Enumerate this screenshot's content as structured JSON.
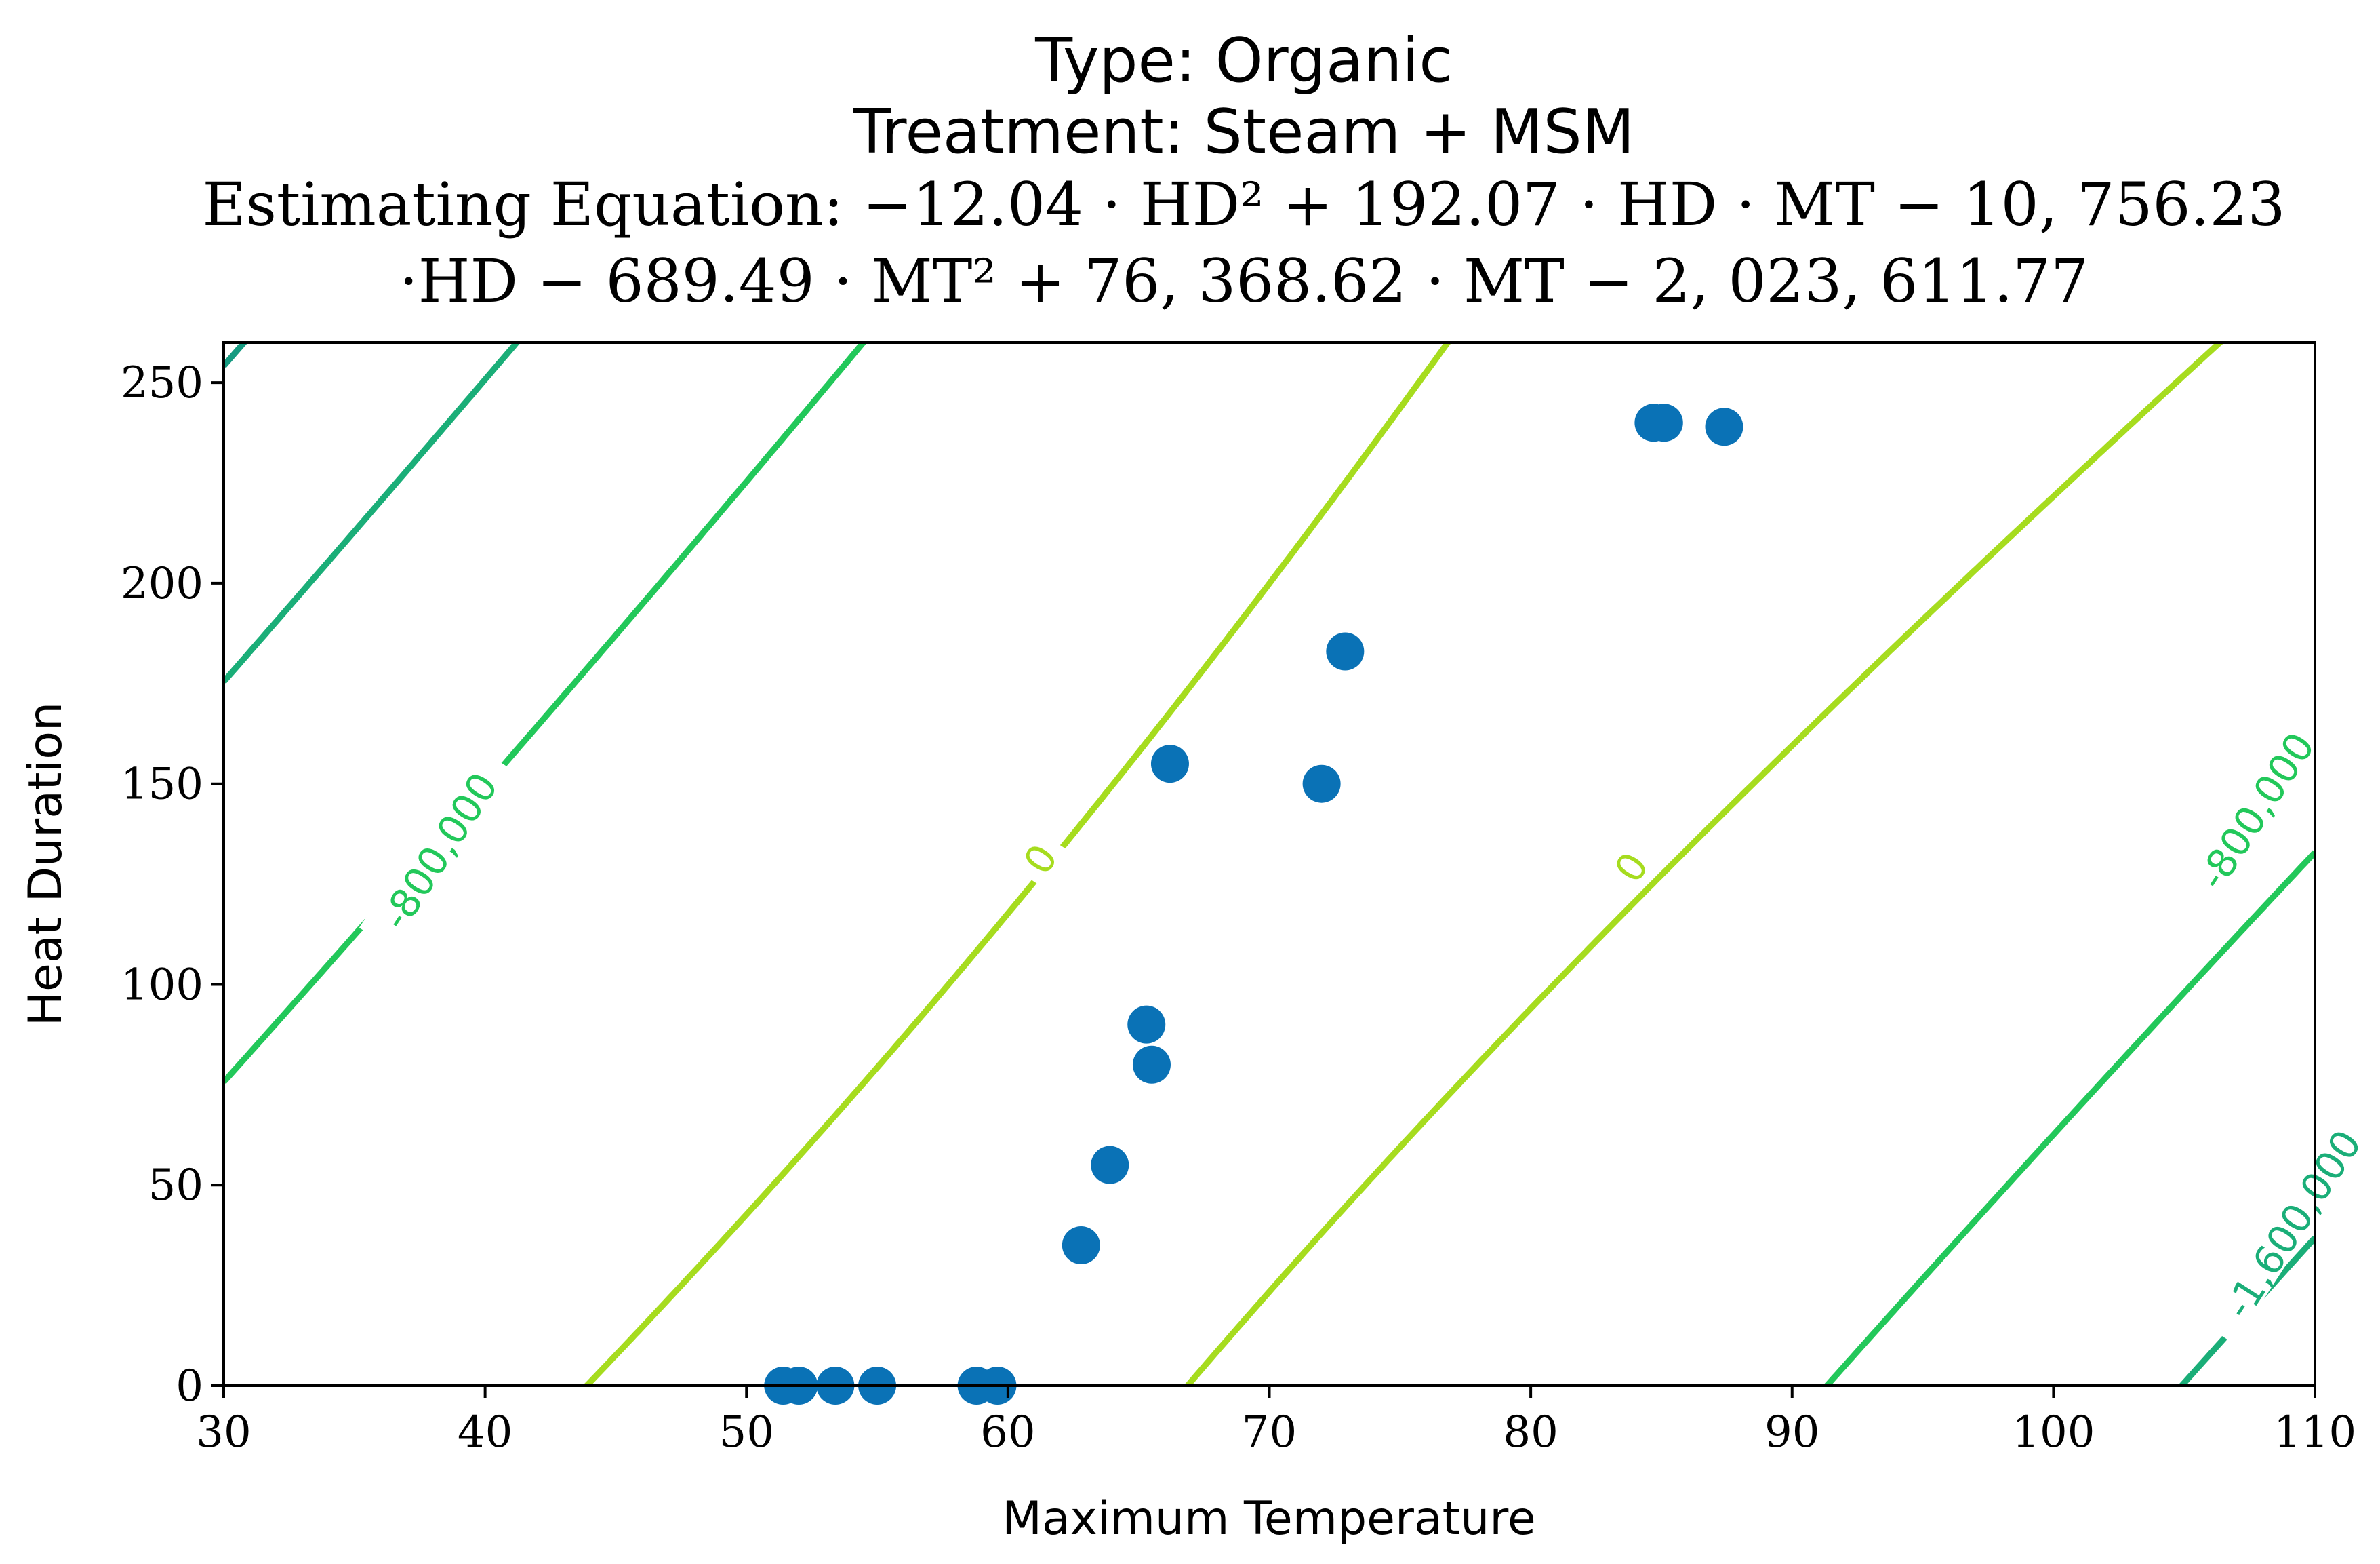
{
  "chart_data": {
    "type": "scatter",
    "title_lines": [
      "Type: Organic",
      "Treatment: Steam + MSM",
      "Estimating Equation: −12.04 · HD² + 192.07 · HD · MT − 10, 756.23",
      "·HD − 689.49 · MT² + 76, 368.62 · MT − 2, 023, 611.77"
    ],
    "xlabel": "Maximum Temperature",
    "ylabel": "Heat Duration",
    "xlim": [
      30,
      110
    ],
    "ylim": [
      0,
      260
    ],
    "xticks": [
      30,
      40,
      50,
      60,
      70,
      80,
      90,
      100,
      110
    ],
    "yticks": [
      0,
      50,
      100,
      150,
      200,
      250
    ],
    "equation": {
      "HD2": -12.04,
      "HD_MT": 192.07,
      "HD": -10756.23,
      "MT2": -689.49,
      "MT": 76368.62,
      "const": -2023611.77
    },
    "contours": [
      {
        "level": 0,
        "label": "0",
        "color": "#a6dc1e"
      },
      {
        "level": -800000,
        "label": "-800,000",
        "color": "#22c85a"
      },
      {
        "level": -1600000,
        "label": "-1,600,000",
        "color": "#1aae78"
      },
      {
        "level": -2400000,
        "label": "",
        "color": "#159a80"
      }
    ],
    "contour_labels": [
      {
        "text": "-800,000",
        "level": -800000,
        "x": 38.3,
        "y": 133
      },
      {
        "text": "0",
        "level": 0,
        "x": 61.3,
        "y": 131
      },
      {
        "text": "0",
        "level": 0,
        "x": 83.9,
        "y": 129
      },
      {
        "text": "-800,000",
        "level": -800000,
        "x": 107.8,
        "y": 143
      },
      {
        "text": "-1,600,000",
        "level": -1600000,
        "x": 109.2,
        "y": 40
      }
    ],
    "points": [
      {
        "x": 51.4,
        "y": 0
      },
      {
        "x": 52.0,
        "y": 0
      },
      {
        "x": 53.4,
        "y": 0
      },
      {
        "x": 55.0,
        "y": 0
      },
      {
        "x": 58.8,
        "y": 0
      },
      {
        "x": 59.6,
        "y": 0
      },
      {
        "x": 62.8,
        "y": 35
      },
      {
        "x": 63.9,
        "y": 55
      },
      {
        "x": 65.3,
        "y": 90
      },
      {
        "x": 65.5,
        "y": 80
      },
      {
        "x": 66.2,
        "y": 155
      },
      {
        "x": 72.0,
        "y": 150
      },
      {
        "x": 72.9,
        "y": 183
      },
      {
        "x": 84.7,
        "y": 240
      },
      {
        "x": 85.1,
        "y": 240
      },
      {
        "x": 87.4,
        "y": 239
      }
    ],
    "point_color": "#0a72b6"
  }
}
